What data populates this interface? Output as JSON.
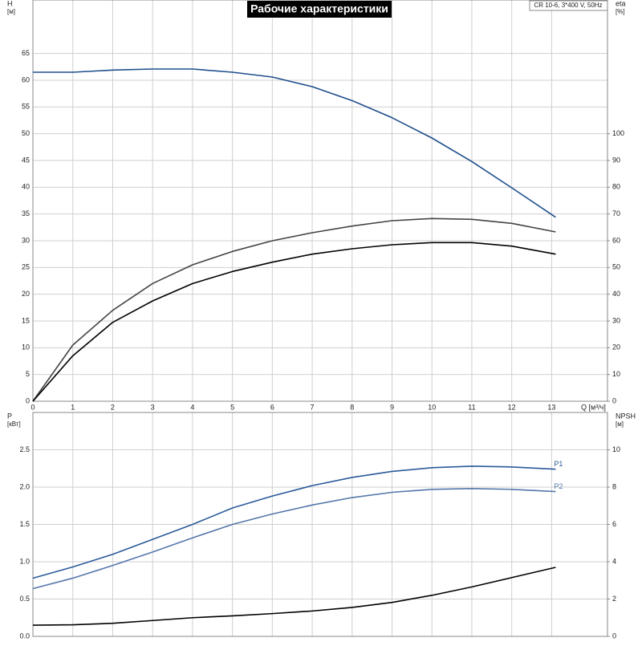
{
  "chart_data": [
    {
      "type": "line",
      "title": "Рабочие характеристики",
      "subtitle": "CR 10-6, 3*400 V, 50Hz",
      "ylabel": "H",
      "yunit": "[м]",
      "y2label": "eta",
      "y2unit": "[%]",
      "xlabel": "Q [м³/ч]",
      "x": [
        0,
        1,
        2,
        3,
        4,
        5,
        6,
        7,
        8,
        9,
        10,
        11,
        12,
        13.1
      ],
      "xlim": [
        0,
        14.4
      ],
      "xticks": [
        0,
        1,
        2,
        3,
        4,
        5,
        6,
        7,
        8,
        9,
        10,
        11,
        12,
        13
      ],
      "ylim": [
        0,
        75
      ],
      "yticks": [
        0,
        5,
        10,
        15,
        20,
        25,
        30,
        35,
        40,
        45,
        50,
        55,
        60,
        65
      ],
      "y2lim": [
        0,
        150
      ],
      "y2ticks": [
        0,
        10,
        20,
        30,
        40,
        50,
        60,
        70,
        80,
        90,
        100
      ],
      "grid": true,
      "series": [
        {
          "color": "#1f4e8c",
          "values": [
            61.5,
            61.5,
            61.9,
            62.1,
            62.1,
            61.5,
            60.6,
            58.8,
            56.2,
            53,
            49.2,
            44.8,
            39.9,
            34.4
          ]
        },
        {
          "color": "#444444",
          "axis": "y2",
          "values": [
            0,
            21,
            34,
            44,
            51,
            56,
            60,
            63,
            65.5,
            67.5,
            68.3,
            68,
            66.5,
            63.3
          ]
        },
        {
          "color": "#000000",
          "axis": "y2",
          "values": [
            0,
            17,
            29.5,
            37.5,
            44,
            48.5,
            52,
            55,
            57,
            58.5,
            59.3,
            59.3,
            58,
            55
          ]
        }
      ]
    },
    {
      "type": "line",
      "ylabel": "P",
      "yunit": "[кВт]",
      "y2label": "NPSH",
      "y2unit": "[м]",
      "x": [
        0,
        1,
        2,
        3,
        4,
        5,
        6,
        7,
        8,
        9,
        10,
        11,
        12,
        13.1
      ],
      "xlim": [
        0,
        14.4
      ],
      "xticks": [
        0,
        1,
        2,
        3,
        4,
        5,
        6,
        7,
        8,
        9,
        10,
        11,
        12,
        13
      ],
      "ylim": [
        0,
        3
      ],
      "yticks": [
        {
          "value": 0,
          "label": "0.0"
        },
        0.5,
        {
          "value": 1,
          "label": "1.0"
        },
        1.5,
        {
          "value": 2,
          "label": "2.0"
        },
        2.5
      ],
      "y2lim": [
        0,
        12
      ],
      "y2ticks": [
        0,
        2,
        4,
        6,
        8,
        10
      ],
      "grid": true,
      "series": [
        {
          "name": "P1",
          "color": "#2a5a9a",
          "values": [
            0.78,
            0.93,
            1.1,
            1.3,
            1.5,
            1.72,
            1.88,
            2.02,
            2.13,
            2.21,
            2.26,
            2.28,
            2.27,
            2.24
          ]
        },
        {
          "name": "P2",
          "color": "#5577aa",
          "values": [
            0.64,
            0.78,
            0.95,
            1.13,
            1.32,
            1.5,
            1.64,
            1.76,
            1.86,
            1.93,
            1.97,
            1.98,
            1.97,
            1.94
          ]
        },
        {
          "color": "#000000",
          "axis": "y2",
          "values": [
            0.6,
            0.62,
            0.7,
            0.85,
            1.0,
            1.1,
            1.22,
            1.36,
            1.55,
            1.82,
            2.2,
            2.65,
            3.15,
            3.7
          ]
        }
      ]
    }
  ]
}
